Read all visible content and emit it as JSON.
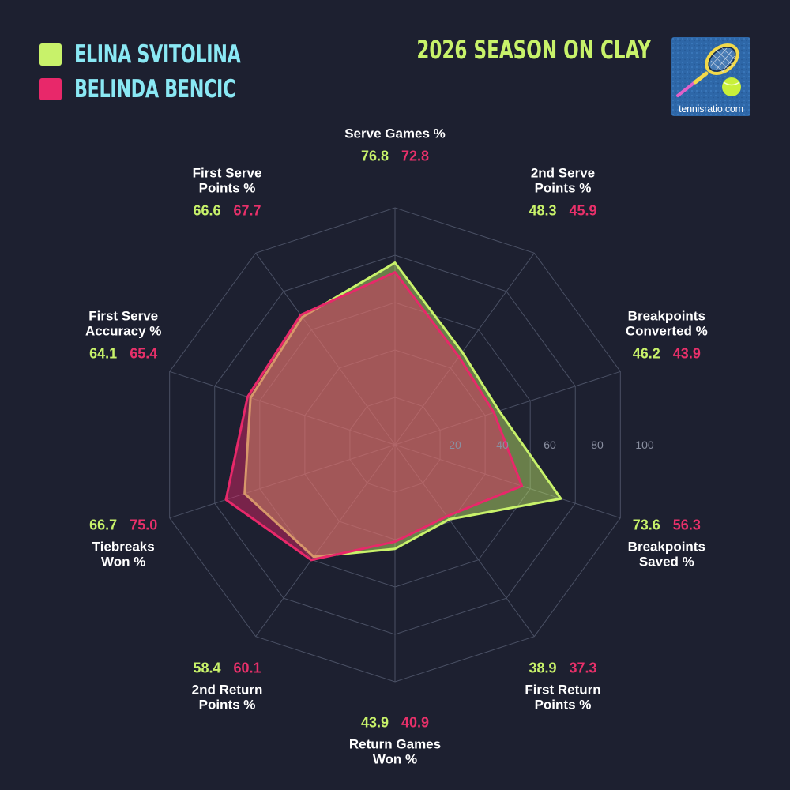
{
  "colors": {
    "a": "#c8f26a",
    "b": "#e8286a",
    "background": "#1d2030",
    "name_text": "#8ae8f4"
  },
  "title": "2026 SEASON ON CLAY",
  "logo": {
    "text": "tennisratio.com",
    "icon": "tennis-racket-and-ball-icon"
  },
  "chart_data": {
    "type": "radar",
    "title": "2026 SEASON ON CLAY",
    "rlim": [
      0,
      100
    ],
    "ticks": [
      "20",
      "40",
      "60",
      "80",
      "100"
    ],
    "categories": [
      [
        "Serve Games %"
      ],
      [
        "2nd Serve",
        "Points %"
      ],
      [
        "Breakpoints",
        "Converted %"
      ],
      [
        "Breakpoints",
        "Saved %"
      ],
      [
        "First Return",
        "Points %"
      ],
      [
        "Return Games",
        "Won %"
      ],
      [
        "2nd Return",
        "Points %"
      ],
      [
        "Tiebreaks",
        "Won %"
      ],
      [
        "First Serve",
        "Accuracy %"
      ],
      [
        "First Serve",
        "Points %"
      ]
    ],
    "series": [
      {
        "name": "ELINA SVITOLINA",
        "values": [
          76.8,
          48.3,
          46.2,
          73.6,
          38.9,
          43.9,
          58.4,
          66.7,
          64.1,
          66.6
        ]
      },
      {
        "name": "BELINDA BENCIC",
        "values": [
          72.8,
          45.9,
          43.9,
          56.3,
          37.3,
          40.9,
          60.1,
          75.0,
          65.4,
          67.7
        ]
      }
    ],
    "legend": "top-left",
    "grid": true
  }
}
